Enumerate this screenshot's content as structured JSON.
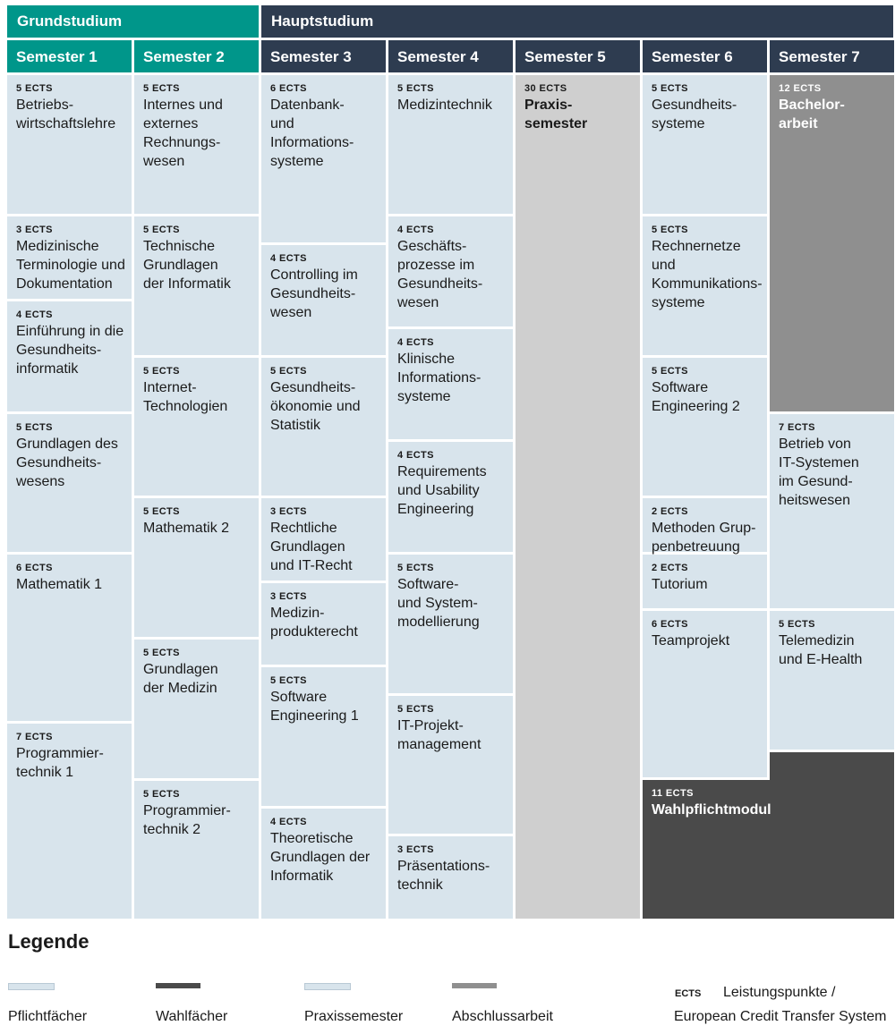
{
  "colors": {
    "grund": "#00968a",
    "haupt": "#2e3c50",
    "pflicht": "#d8e4ec",
    "praxis": "#cfcfcf",
    "abschluss": "#8f8f8f",
    "wahl": "#4a4a4a"
  },
  "phases": {
    "grund": "Grundstudium",
    "haupt": "Hauptstudium"
  },
  "semesters": [
    "Semester 1",
    "Semester 2",
    "Semester 3",
    "Semester 4",
    "Semester 5",
    "Semester 6",
    "Semester 7"
  ],
  "modules": [
    {
      "ects": "5 ECTS",
      "title": "Betriebs-\nwirtschaftslehre"
    },
    {
      "ects": "3 ECTS",
      "title": "Medizinische\nTerminologie und\nDokumentation"
    },
    {
      "ects": "4 ECTS",
      "title": "Einführung in die\nGesundheits-\ninformatik"
    },
    {
      "ects": "5 ECTS",
      "title": "Grundlagen des\nGesundheits-\nwesens"
    },
    {
      "ects": "6 ECTS",
      "title": "Mathematik 1"
    },
    {
      "ects": "7 ECTS",
      "title": "Programmier-\ntechnik 1"
    },
    {
      "ects": "5 ECTS",
      "title": "Internes und\nexternes\nRechnungs-\nwesen"
    },
    {
      "ects": "5 ECTS",
      "title": "Technische\nGrundlagen\nder Informatik"
    },
    {
      "ects": "5 ECTS",
      "title": "Internet-\nTechnologien"
    },
    {
      "ects": "5 ECTS",
      "title": "Mathematik 2"
    },
    {
      "ects": "5 ECTS",
      "title": "Grundlagen\nder Medizin"
    },
    {
      "ects": "5 ECTS",
      "title": "Programmier-\ntechnik 2"
    },
    {
      "ects": "6 ECTS",
      "title": "Datenbank-\nund\nInformations-\nsysteme"
    },
    {
      "ects": "4 ECTS",
      "title": "Controlling im\nGesundheits-\nwesen"
    },
    {
      "ects": "5 ECTS",
      "title": "Gesundheits-\nökonomie und\nStatistik"
    },
    {
      "ects": "3 ECTS",
      "title": "Rechtliche\nGrundlagen\nund IT-Recht"
    },
    {
      "ects": "3 ECTS",
      "title": "Medizin-\nprodukterecht"
    },
    {
      "ects": "5 ECTS",
      "title": "Software\nEngineering 1"
    },
    {
      "ects": "4 ECTS",
      "title": "Theoretische\nGrundlagen der\nInformatik"
    },
    {
      "ects": "5 ECTS",
      "title": "Medizintechnik"
    },
    {
      "ects": "4 ECTS",
      "title": "Geschäfts-\nprozesse im\nGesundheits-\nwesen"
    },
    {
      "ects": "4 ECTS",
      "title": "Klinische\nInformations-\nsysteme"
    },
    {
      "ects": "4 ECTS",
      "title": "Requirements\nund Usability\nEngineering"
    },
    {
      "ects": "5 ECTS",
      "title": "Software-\nund System-\nmodellierung"
    },
    {
      "ects": "5 ECTS",
      "title": "IT-Projekt-\nmanagement"
    },
    {
      "ects": "3 ECTS",
      "title": "Präsentations-\ntechnik"
    },
    {
      "ects": "30 ECTS",
      "title": "Praxis-\nsemester"
    },
    {
      "ects": "5 ECTS",
      "title": "Gesundheits-\nsysteme"
    },
    {
      "ects": "5 ECTS",
      "title": "Rechnernetze\nund\nKommunikations-\nsysteme"
    },
    {
      "ects": "5 ECTS",
      "title": "Software\nEngineering 2"
    },
    {
      "ects": "2 ECTS",
      "title": "Methoden Grup-\npenbetreuung"
    },
    {
      "ects": "2 ECTS",
      "title": "Tutorium"
    },
    {
      "ects": "6 ECTS",
      "title": "Teamprojekt"
    },
    {
      "ects": "11 ECTS",
      "title": "Wahlpflichtmodul"
    },
    {
      "ects": "12 ECTS",
      "title": "Bachelor-\narbeit"
    },
    {
      "ects": "7 ECTS",
      "title": "Betrieb von\nIT-Systemen\nim Gesund-\nheitswesen"
    },
    {
      "ects": "5 ECTS",
      "title": "Telemedizin\nund E-Health"
    }
  ],
  "legend": {
    "title": "Legende",
    "items": [
      "Pflichtfächer",
      "Wahlfächer",
      "Praxissemester",
      "Abschlussarbeit"
    ],
    "ects_key": "ECTS",
    "ects_desc_line1": "Leistungspunkte /",
    "ects_desc_line2": "European Credit Transfer System"
  }
}
